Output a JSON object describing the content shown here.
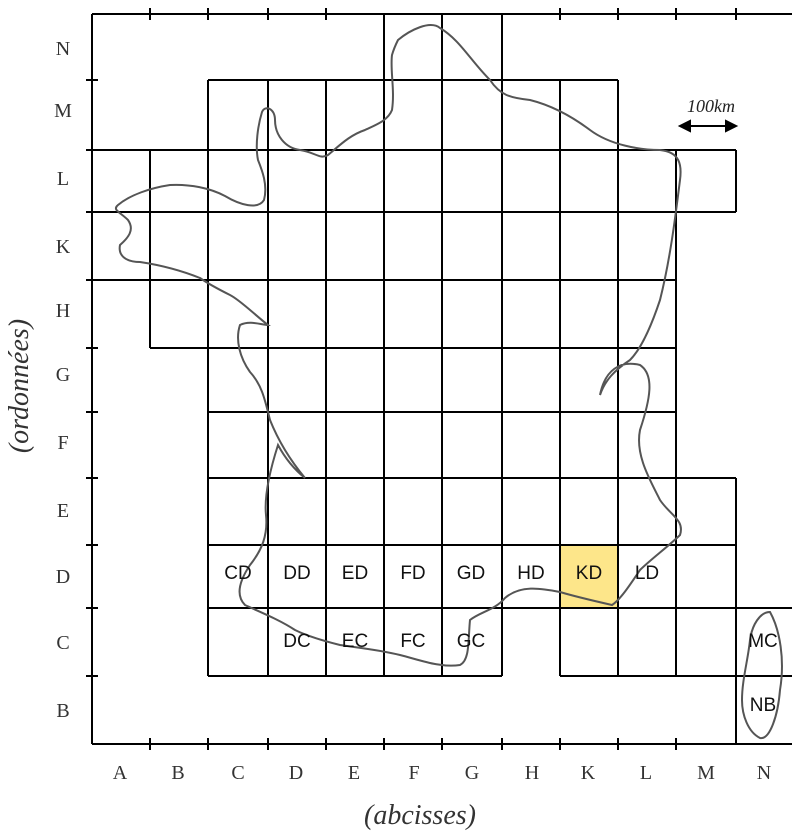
{
  "rows": [
    "N",
    "M",
    "L",
    "K",
    "H",
    "G",
    "F",
    "E",
    "D",
    "C",
    "B"
  ],
  "columns": [
    "A",
    "B",
    "C",
    "D",
    "E",
    "F",
    "G",
    "H",
    "K",
    "L",
    "M",
    "N"
  ],
  "axis_x_title": "(abcisses)",
  "axis_y_title": "(ordonnées)",
  "scale_label": "100km",
  "highlight_color": "#fde68a",
  "cells": {
    "CD": "CD",
    "DD": "DD",
    "ED": "ED",
    "FD": "FD",
    "GD": "GD",
    "HD": "HD",
    "KD": "KD",
    "LD": "LD",
    "DC": "DC",
    "EC": "EC",
    "FC": "FC",
    "GC": "GC",
    "MC": "MC",
    "NB": "NB"
  },
  "highlighted_cell": "KD"
}
